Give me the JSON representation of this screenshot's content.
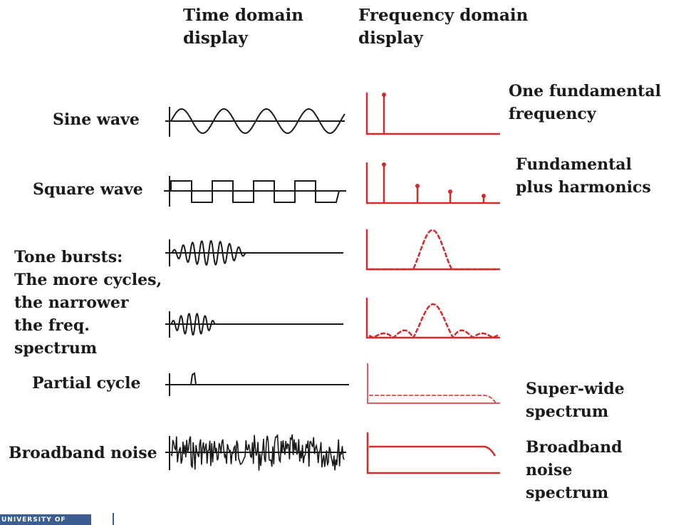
{
  "headers": {
    "time": "Time domain\ndisplay",
    "freq": "Frequency domain\ndisplay"
  },
  "rows": {
    "sine": "Sine wave",
    "square": "Square wave",
    "tone": "Tone bursts:\nThe more cycles,\nthe narrower\nthe freq.\nspectrum",
    "partial": "Partial cycle",
    "noise": "Broadband noise"
  },
  "annotations": {
    "sine": "One fundamental\nfrequency",
    "square": "Fundamental\nplus harmonics",
    "partial": "Super-wide\nspectrum",
    "noise": "Broadband\nnoise\nspectrum"
  },
  "footer": {
    "logo_text": "UNIVERSITY OF"
  },
  "colors": {
    "time_trace": "#1a1a1a",
    "freq_trace": "#d42a2a"
  }
}
